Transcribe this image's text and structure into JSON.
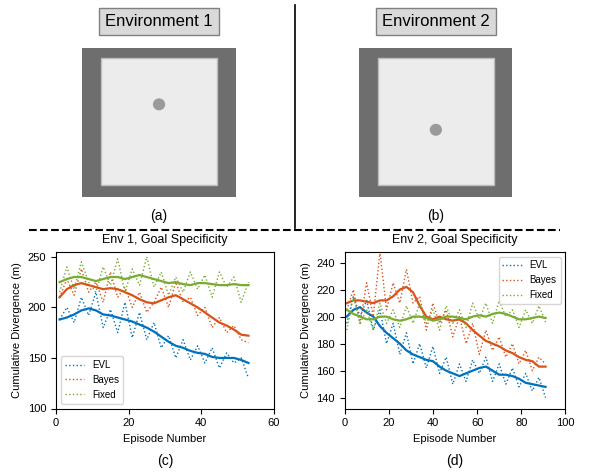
{
  "figure": {
    "panels": [
      {
        "title": "Environment 1",
        "caption": "(a)"
      },
      {
        "title": "Environment 2",
        "caption": "(b)"
      }
    ],
    "chart_captions": [
      "(c)",
      "(d)"
    ]
  },
  "chart_data": [
    {
      "type": "line",
      "title": "Env 1, Goal Specificity",
      "x_label": "Episode Number",
      "y_label": "Cumulative Divergence (m)",
      "x": [
        1,
        3,
        5,
        7,
        9,
        11,
        13,
        15,
        17,
        19,
        21,
        23,
        25,
        27,
        29,
        31,
        33,
        35,
        37,
        39,
        41,
        43,
        45,
        47,
        49,
        51,
        53
      ],
      "xlim": [
        0,
        60
      ],
      "xticks": [
        0,
        20,
        40,
        60
      ],
      "ylim": [
        100,
        255
      ],
      "yticks": [
        100,
        150,
        200,
        250
      ],
      "legend": "lower left",
      "series": [
        {
          "name": "EVL",
          "color": "#0072bd",
          "line_style": "dotted",
          "values": [
            188,
            200,
            185,
            210,
            192,
            215,
            180,
            198,
            175,
            205,
            170,
            195,
            168,
            185,
            160,
            172,
            150,
            168,
            148,
            162,
            145,
            160,
            140,
            155,
            145,
            150,
            130
          ],
          "smoothed": [
            188,
            190,
            193,
            197,
            199,
            197,
            193,
            192,
            190,
            188,
            186,
            183,
            180,
            176,
            171,
            166,
            162,
            160,
            157,
            155,
            154,
            151,
            150,
            150,
            150,
            148,
            145
          ]
        },
        {
          "name": "Bayes",
          "color": "#d95319",
          "line_style": "dotted",
          "values": [
            210,
            228,
            212,
            238,
            215,
            225,
            205,
            235,
            210,
            220,
            200,
            215,
            195,
            205,
            220,
            200,
            225,
            205,
            210,
            192,
            200,
            180,
            190,
            175,
            182,
            168,
            165
          ],
          "smoothed": [
            210,
            218,
            222,
            224,
            222,
            220,
            218,
            219,
            218,
            215,
            212,
            208,
            205,
            204,
            207,
            210,
            212,
            208,
            204,
            200,
            195,
            190,
            185,
            182,
            178,
            173,
            172
          ]
        },
        {
          "name": "Fixed",
          "color": "#77ac30",
          "line_style": "dotted",
          "values": [
            215,
            240,
            218,
            245,
            225,
            215,
            240,
            222,
            248,
            215,
            238,
            222,
            250,
            220,
            235,
            212,
            230,
            215,
            235,
            218,
            232,
            210,
            235,
            220,
            230,
            205,
            225
          ],
          "smoothed": [
            225,
            228,
            230,
            230,
            228,
            226,
            228,
            230,
            230,
            228,
            230,
            232,
            230,
            228,
            226,
            224,
            225,
            223,
            222,
            224,
            224,
            223,
            222,
            222,
            223,
            222,
            222
          ]
        }
      ]
    },
    {
      "type": "line",
      "title": "Env 2, Goal Specificity",
      "x_label": "Episode Number",
      "y_label": "Cumulative Divergence (m)",
      "x": [
        1,
        4,
        7,
        10,
        13,
        16,
        19,
        22,
        25,
        28,
        31,
        34,
        37,
        40,
        43,
        46,
        49,
        52,
        55,
        58,
        61,
        64,
        67,
        70,
        73,
        76,
        79,
        82,
        85,
        88,
        91
      ],
      "xlim": [
        0,
        100
      ],
      "xticks": [
        0,
        20,
        40,
        60,
        80,
        100
      ],
      "ylim": [
        132,
        248
      ],
      "yticks": [
        140,
        160,
        180,
        200,
        220,
        240
      ],
      "legend": "upper right",
      "series": [
        {
          "name": "EVL",
          "color": "#0072bd",
          "line_style": "dotted",
          "values": [
            195,
            215,
            200,
            212,
            190,
            205,
            180,
            195,
            172,
            188,
            165,
            180,
            162,
            178,
            158,
            170,
            150,
            165,
            152,
            168,
            158,
            170,
            152,
            165,
            150,
            162,
            148,
            158,
            145,
            155,
            140
          ],
          "smoothed": [
            200,
            205,
            207,
            203,
            200,
            193,
            188,
            184,
            180,
            175,
            172,
            170,
            168,
            167,
            163,
            160,
            158,
            156,
            158,
            160,
            162,
            163,
            160,
            157,
            157,
            156,
            154,
            151,
            150,
            149,
            148
          ]
        },
        {
          "name": "Bayes",
          "color": "#d95319",
          "line_style": "dotted",
          "values": [
            205,
            220,
            195,
            225,
            200,
            248,
            205,
            225,
            210,
            235,
            210,
            215,
            190,
            210,
            195,
            205,
            185,
            200,
            180,
            195,
            172,
            190,
            175,
            185,
            170,
            180,
            165,
            175,
            160,
            170,
            165
          ],
          "smoothed": [
            210,
            212,
            212,
            211,
            210,
            212,
            212,
            215,
            220,
            222,
            218,
            208,
            200,
            198,
            200,
            198,
            197,
            198,
            195,
            190,
            186,
            182,
            180,
            178,
            175,
            173,
            170,
            168,
            167,
            163,
            163
          ]
        },
        {
          "name": "Fixed",
          "color": "#77ac30",
          "line_style": "dotted",
          "values": [
            190,
            215,
            195,
            205,
            190,
            210,
            195,
            205,
            192,
            208,
            195,
            210,
            195,
            205,
            190,
            208,
            195,
            205,
            192,
            210,
            198,
            210,
            195,
            212,
            200,
            205,
            192,
            205,
            195,
            208,
            196
          ],
          "smoothed": [
            205,
            202,
            200,
            198,
            198,
            200,
            200,
            198,
            197,
            198,
            200,
            200,
            199,
            197,
            198,
            200,
            200,
            199,
            198,
            200,
            201,
            200,
            202,
            203,
            202,
            200,
            198,
            198,
            199,
            200,
            199
          ]
        }
      ]
    }
  ]
}
